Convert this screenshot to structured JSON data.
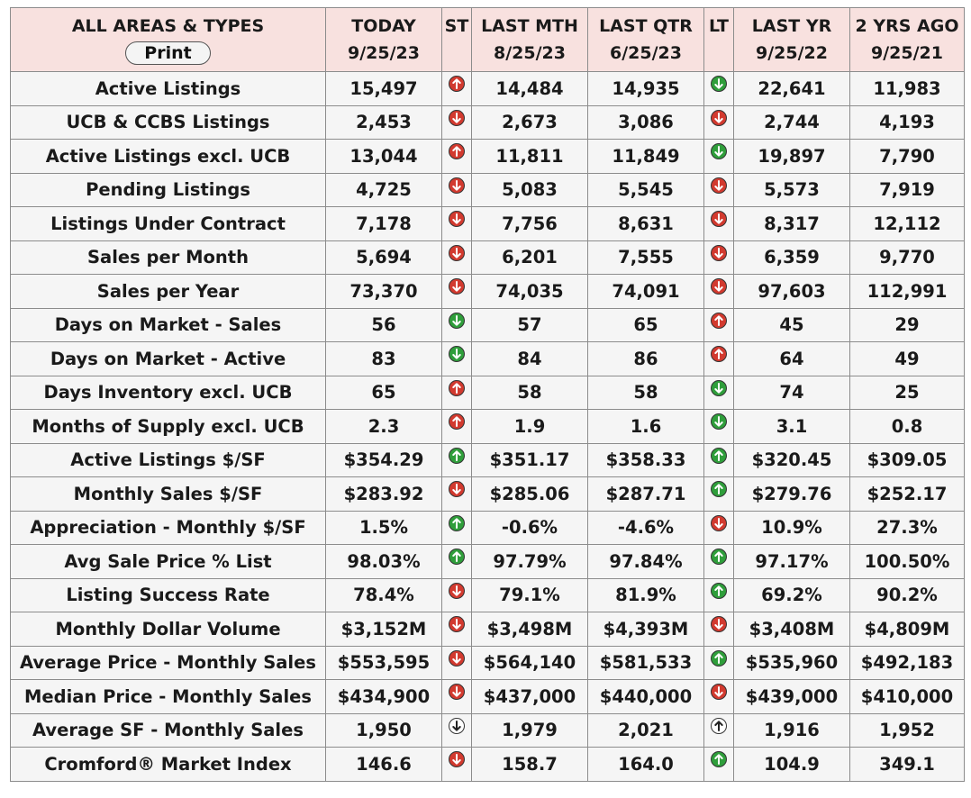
{
  "header": {
    "area_label": "ALL AREAS & TYPES",
    "print_label": "Print",
    "today": "TODAY",
    "today_date": "9/25/23",
    "st": "ST",
    "last_mth": "LAST MTH",
    "last_mth_date": "8/25/23",
    "last_qtr": "LAST QTR",
    "last_qtr_date": "6/25/23",
    "lt": "LT",
    "last_yr": "LAST YR",
    "last_yr_date": "9/25/22",
    "two_yrs": "2 YRS AGO",
    "two_yrs_date": "9/25/21"
  },
  "colors": {
    "up_green": "#2f9e3b",
    "down_red": "#d23a2f",
    "neutral": "#ffffff",
    "header_bg": "#f8e1df",
    "row_bg": "#f5f5f5"
  },
  "rows": [
    {
      "label": "Active Listings",
      "today": "15,497",
      "st": "red-up",
      "last_mth": "14,484",
      "last_qtr": "14,935",
      "lt": "green-down",
      "last_yr": "22,641",
      "two_yrs": "11,983"
    },
    {
      "label": "UCB & CCBS Listings",
      "today": "2,453",
      "st": "red-down",
      "last_mth": "2,673",
      "last_qtr": "3,086",
      "lt": "red-down",
      "last_yr": "2,744",
      "two_yrs": "4,193"
    },
    {
      "label": "Active Listings excl. UCB",
      "today": "13,044",
      "st": "red-up",
      "last_mth": "11,811",
      "last_qtr": "11,849",
      "lt": "green-down",
      "last_yr": "19,897",
      "two_yrs": "7,790"
    },
    {
      "label": "Pending Listings",
      "today": "4,725",
      "st": "red-down",
      "last_mth": "5,083",
      "last_qtr": "5,545",
      "lt": "red-down",
      "last_yr": "5,573",
      "two_yrs": "7,919"
    },
    {
      "label": "Listings Under Contract",
      "today": "7,178",
      "st": "red-down",
      "last_mth": "7,756",
      "last_qtr": "8,631",
      "lt": "red-down",
      "last_yr": "8,317",
      "two_yrs": "12,112"
    },
    {
      "label": "Sales per Month",
      "today": "5,694",
      "st": "red-down",
      "last_mth": "6,201",
      "last_qtr": "7,555",
      "lt": "red-down",
      "last_yr": "6,359",
      "two_yrs": "9,770"
    },
    {
      "label": "Sales per Year",
      "today": "73,370",
      "st": "red-down",
      "last_mth": "74,035",
      "last_qtr": "74,091",
      "lt": "red-down",
      "last_yr": "97,603",
      "two_yrs": "112,991"
    },
    {
      "label": "Days on Market - Sales",
      "today": "56",
      "st": "green-down",
      "last_mth": "57",
      "last_qtr": "65",
      "lt": "red-up",
      "last_yr": "45",
      "two_yrs": "29"
    },
    {
      "label": "Days on Market - Active",
      "today": "83",
      "st": "green-down",
      "last_mth": "84",
      "last_qtr": "86",
      "lt": "red-up",
      "last_yr": "64",
      "two_yrs": "49"
    },
    {
      "label": "Days Inventory excl. UCB",
      "today": "65",
      "st": "red-up",
      "last_mth": "58",
      "last_qtr": "58",
      "lt": "green-down",
      "last_yr": "74",
      "two_yrs": "25"
    },
    {
      "label": "Months of Supply excl. UCB",
      "today": "2.3",
      "st": "red-up",
      "last_mth": "1.9",
      "last_qtr": "1.6",
      "lt": "green-down",
      "last_yr": "3.1",
      "two_yrs": "0.8"
    },
    {
      "label": "Active Listings $/SF",
      "today": "$354.29",
      "st": "green-up",
      "last_mth": "$351.17",
      "last_qtr": "$358.33",
      "lt": "green-up",
      "last_yr": "$320.45",
      "two_yrs": "$309.05"
    },
    {
      "label": "Monthly Sales $/SF",
      "today": "$283.92",
      "st": "red-down",
      "last_mth": "$285.06",
      "last_qtr": "$287.71",
      "lt": "green-up",
      "last_yr": "$279.76",
      "two_yrs": "$252.17"
    },
    {
      "label": "Appreciation - Monthly $/SF",
      "today": "1.5%",
      "st": "green-up",
      "last_mth": "-0.6%",
      "last_qtr": "-4.6%",
      "lt": "red-down",
      "last_yr": "10.9%",
      "two_yrs": "27.3%"
    },
    {
      "label": "Avg Sale Price % List",
      "today": "98.03%",
      "st": "green-up",
      "last_mth": "97.79%",
      "last_qtr": "97.84%",
      "lt": "green-up",
      "last_yr": "97.17%",
      "two_yrs": "100.50%"
    },
    {
      "label": "Listing Success Rate",
      "today": "78.4%",
      "st": "red-down",
      "last_mth": "79.1%",
      "last_qtr": "81.9%",
      "lt": "green-up",
      "last_yr": "69.2%",
      "two_yrs": "90.2%"
    },
    {
      "label": "Monthly Dollar Volume",
      "today": "$3,152M",
      "st": "red-down",
      "last_mth": "$3,498M",
      "last_qtr": "$4,393M",
      "lt": "red-down",
      "last_yr": "$3,408M",
      "two_yrs": "$4,809M"
    },
    {
      "label": "Average Price - Monthly Sales",
      "today": "$553,595",
      "st": "red-down",
      "last_mth": "$564,140",
      "last_qtr": "$581,533",
      "lt": "green-up",
      "last_yr": "$535,960",
      "two_yrs": "$492,183"
    },
    {
      "label": "Median Price - Monthly Sales",
      "today": "$434,900",
      "st": "red-down",
      "last_mth": "$437,000",
      "last_qtr": "$440,000",
      "lt": "red-down",
      "last_yr": "$439,000",
      "two_yrs": "$410,000"
    },
    {
      "label": "Average SF - Monthly Sales",
      "today": "1,950",
      "st": "neutral-down",
      "last_mth": "1,979",
      "last_qtr": "2,021",
      "lt": "neutral-up",
      "last_yr": "1,916",
      "two_yrs": "1,952"
    },
    {
      "label": "Cromford® Market Index",
      "today": "146.6",
      "st": "red-down",
      "last_mth": "158.7",
      "last_qtr": "164.0",
      "lt": "green-up",
      "last_yr": "104.9",
      "two_yrs": "349.1"
    }
  ]
}
